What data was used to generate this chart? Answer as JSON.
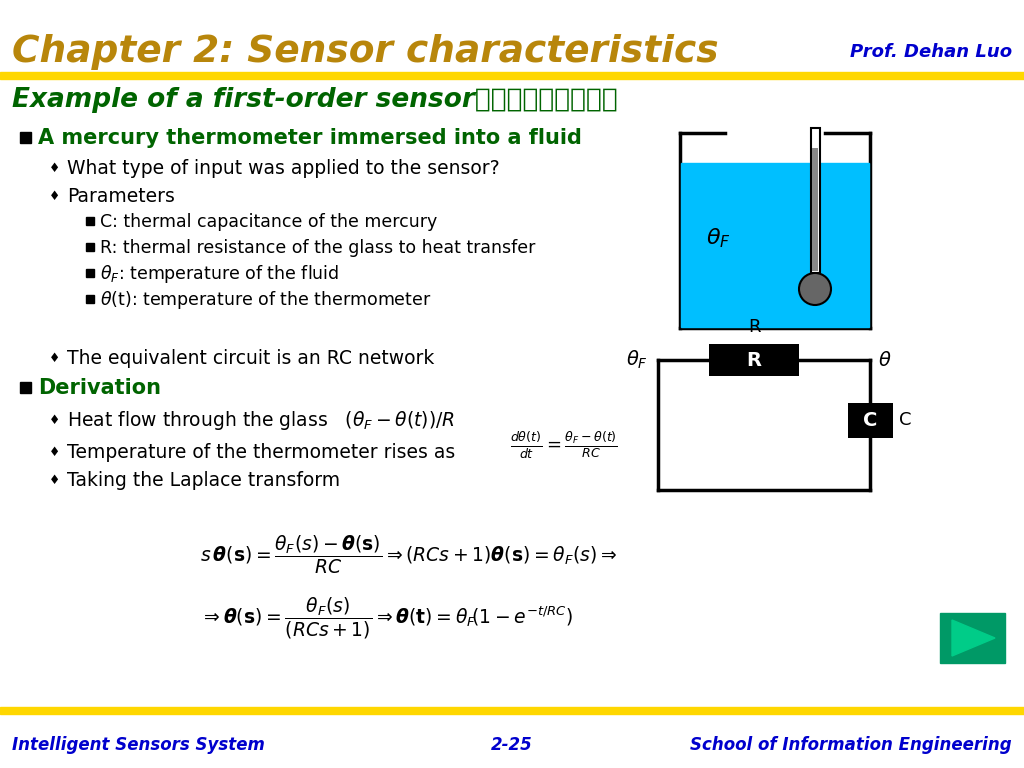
{
  "title": "Chapter 2: Sensor characteristics",
  "title_color": "#B8860B",
  "prof_text": "Prof. Dehan Luo",
  "prof_color": "#0000CD",
  "subtitle": "Example of a first-order sensor（一阶传感器举例）",
  "subtitle_color": "#006400",
  "separator_color": "#FFD700",
  "bg_color": "#FFFFFF",
  "footer_left": "Intelligent Sensors System",
  "footer_center": "2-25",
  "footer_right": "School of Information Engineering",
  "footer_color": "#0000CD",
  "bullet1_header": "A mercury thermometer immersed into a fluid",
  "bullet1_color": "#006400",
  "bullet2_header": "Derivation",
  "bullet2_color": "#006400",
  "text_color": "#000000",
  "fluid_color": "#00BFFF",
  "nav_arrow_color": "#009966",
  "nav_arrow_bg": "#006644"
}
